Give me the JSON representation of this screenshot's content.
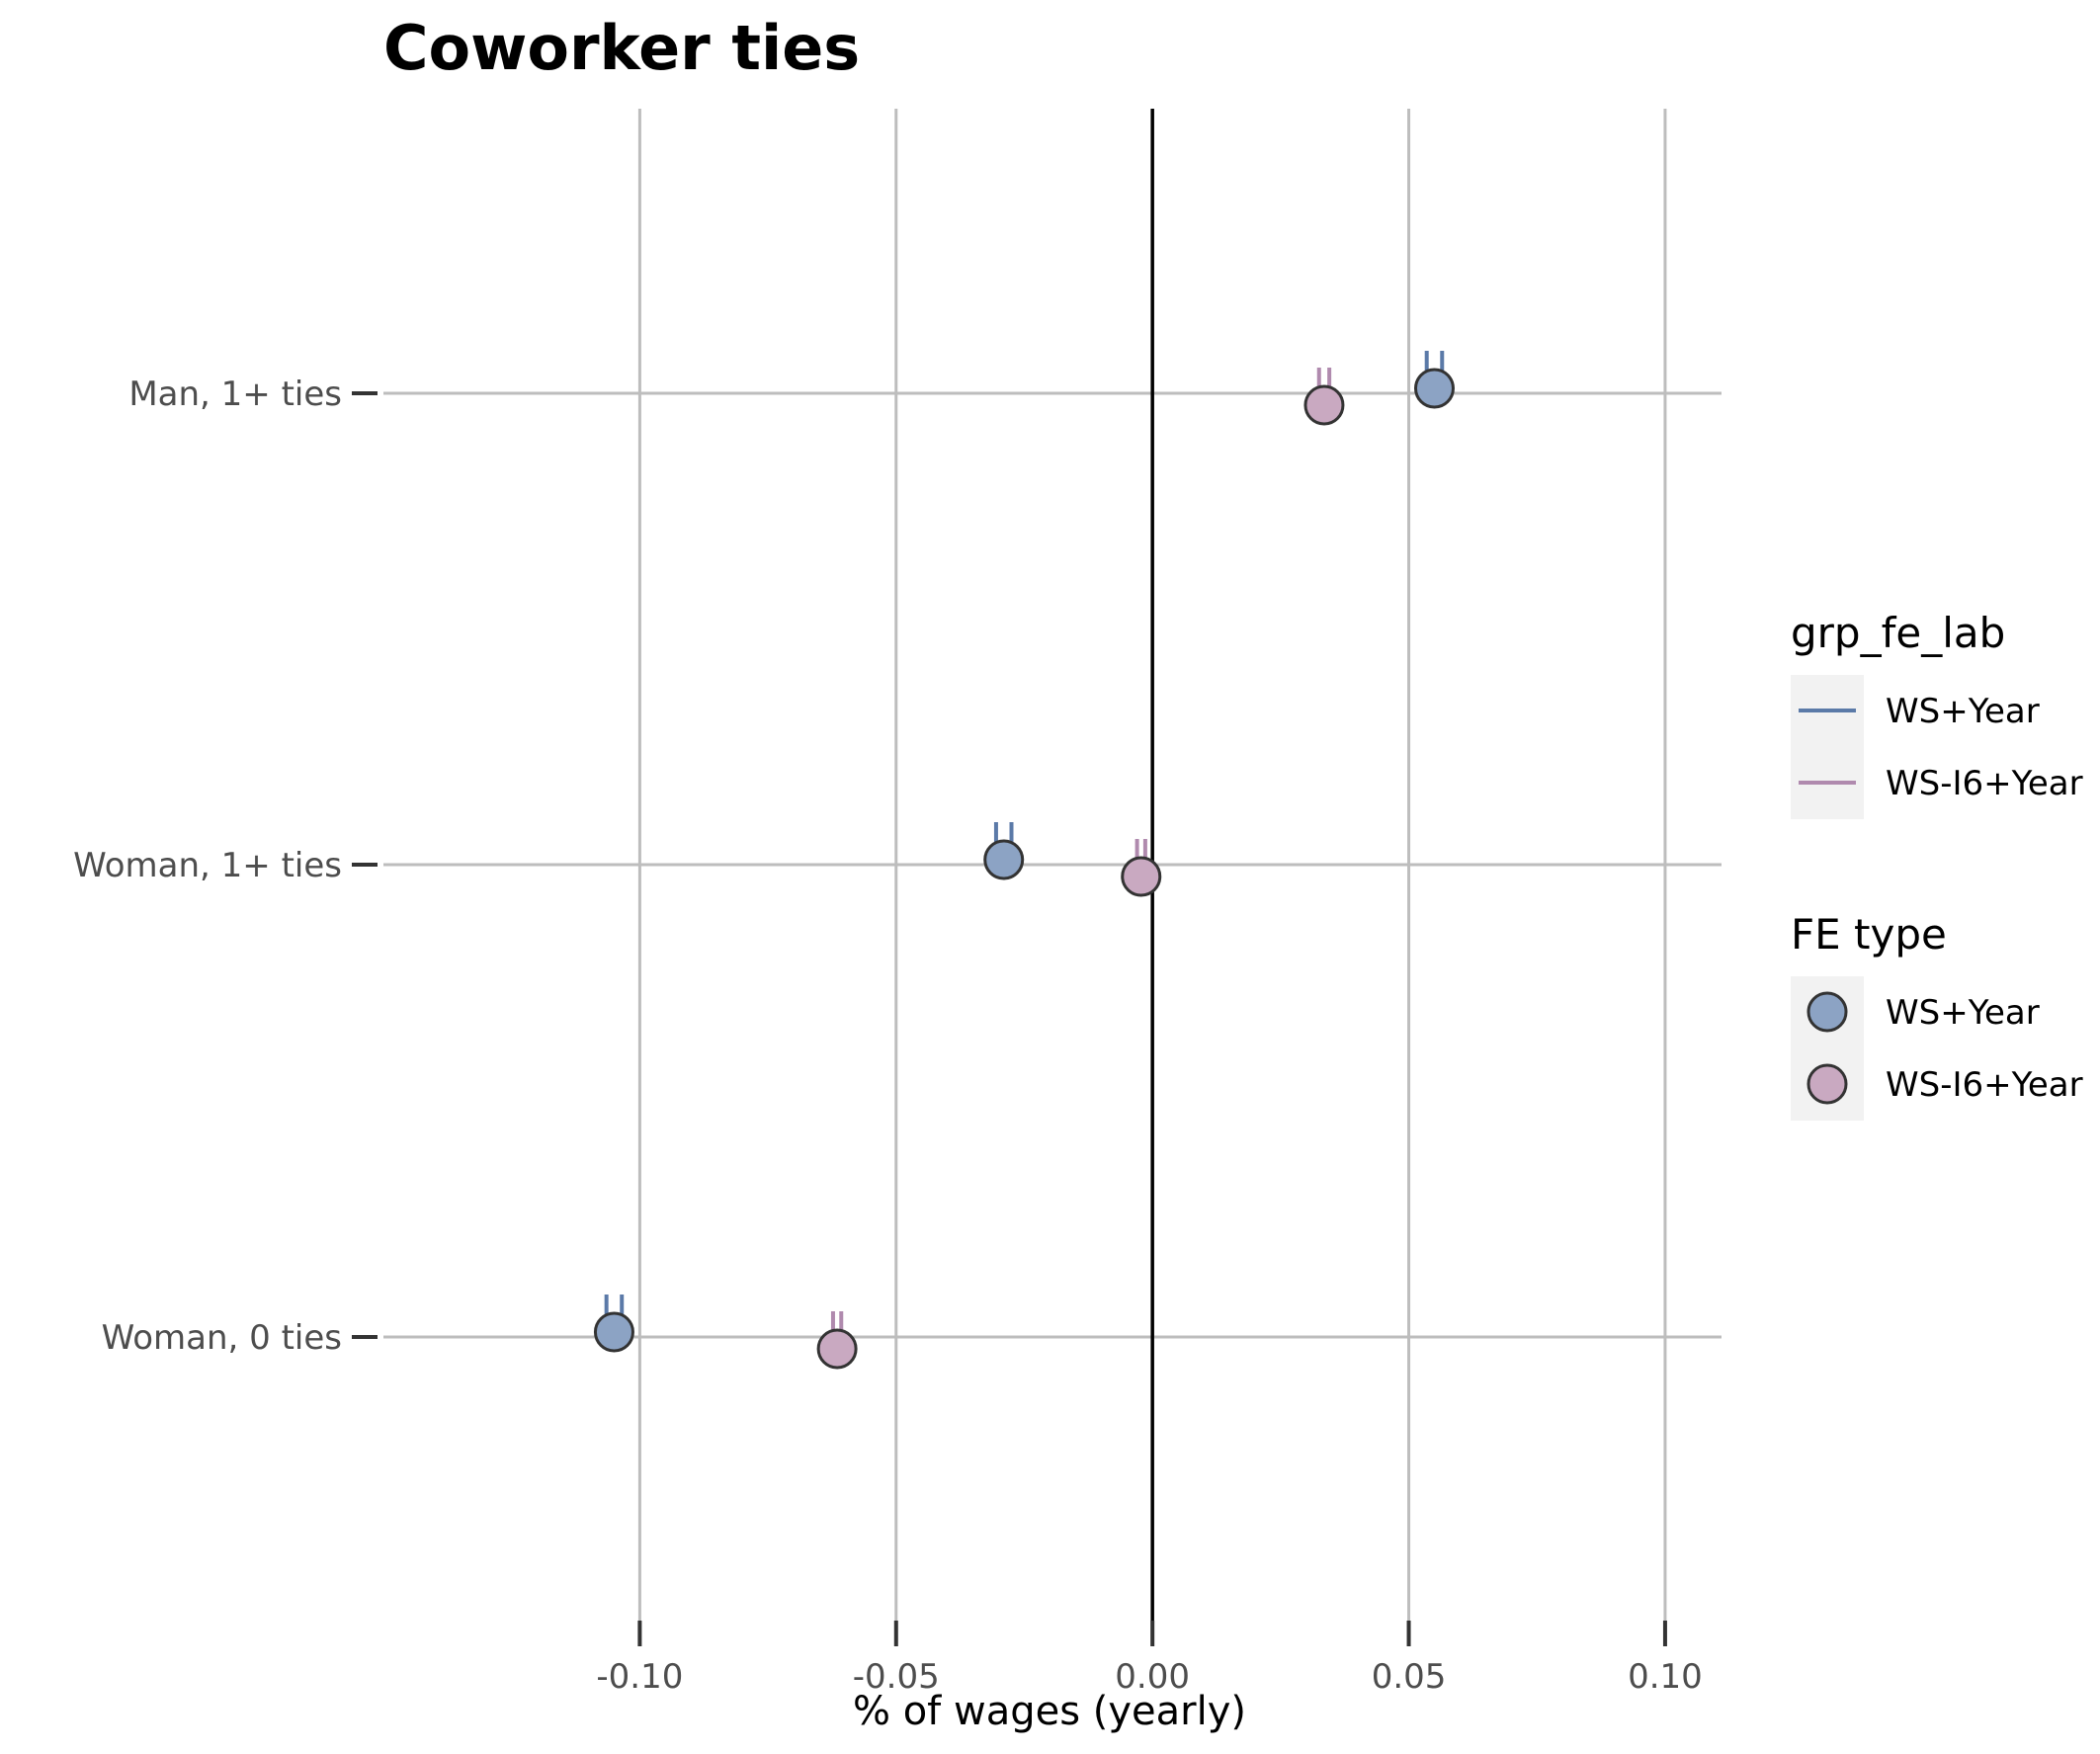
{
  "chart_data": {
    "type": "scatter",
    "title": "Coworker ties",
    "xlabel": "% of wages (yearly)",
    "ylabel": "",
    "xlim": [
      -0.15,
      0.111
    ],
    "x_ticks": [
      -0.1,
      -0.05,
      0.0,
      0.05,
      0.1
    ],
    "x_tick_labels": [
      "-0.10",
      "-0.05",
      "0.00",
      "0.05",
      "0.10"
    ],
    "categories": [
      "Man, 1+ ties",
      "Woman, 1+ ties",
      "Woman, 0 ties"
    ],
    "reference_line_x": 0,
    "grid": true,
    "legend_position": "right",
    "colors": {
      "ws_year_line": "#5b7aa8",
      "ws_year_point": "#8ca3c4",
      "ws_i6_line": "#b08aae",
      "ws_i6_point": "#c9a9c1",
      "grid": "#bdbdbd",
      "zero_line": "#000000",
      "legend_key_bg": "#f2f2f2",
      "tick_text": "#4d4d4d"
    },
    "series": [
      {
        "name": "WS+Year",
        "points": [
          {
            "category": "Man, 1+ ties",
            "x": 0.055,
            "ci": [
              0.0535,
              0.0565
            ]
          },
          {
            "category": "Woman, 1+ ties",
            "x": -0.029,
            "ci": [
              -0.0305,
              -0.0275
            ]
          },
          {
            "category": "Woman, 0 ties",
            "x": -0.105,
            "ci": [
              -0.1065,
              -0.1035
            ]
          }
        ]
      },
      {
        "name": "WS-I6+Year",
        "points": [
          {
            "category": "Man, 1+ ties",
            "x": 0.0335,
            "ci": [
              0.0325,
              0.0345
            ]
          },
          {
            "category": "Woman, 1+ ties",
            "x": -0.0022,
            "ci": [
              -0.003,
              -0.0014
            ]
          },
          {
            "category": "Woman, 0 ties",
            "x": -0.0615,
            "ci": [
              -0.0623,
              -0.0607
            ]
          }
        ]
      }
    ],
    "legends": [
      {
        "title": "grp_fe_lab",
        "key": "line",
        "entries": [
          "WS+Year",
          "WS-I6+Year"
        ]
      },
      {
        "title": "FE type",
        "key": "point",
        "entries": [
          "WS+Year",
          "WS-I6+Year"
        ]
      }
    ]
  }
}
